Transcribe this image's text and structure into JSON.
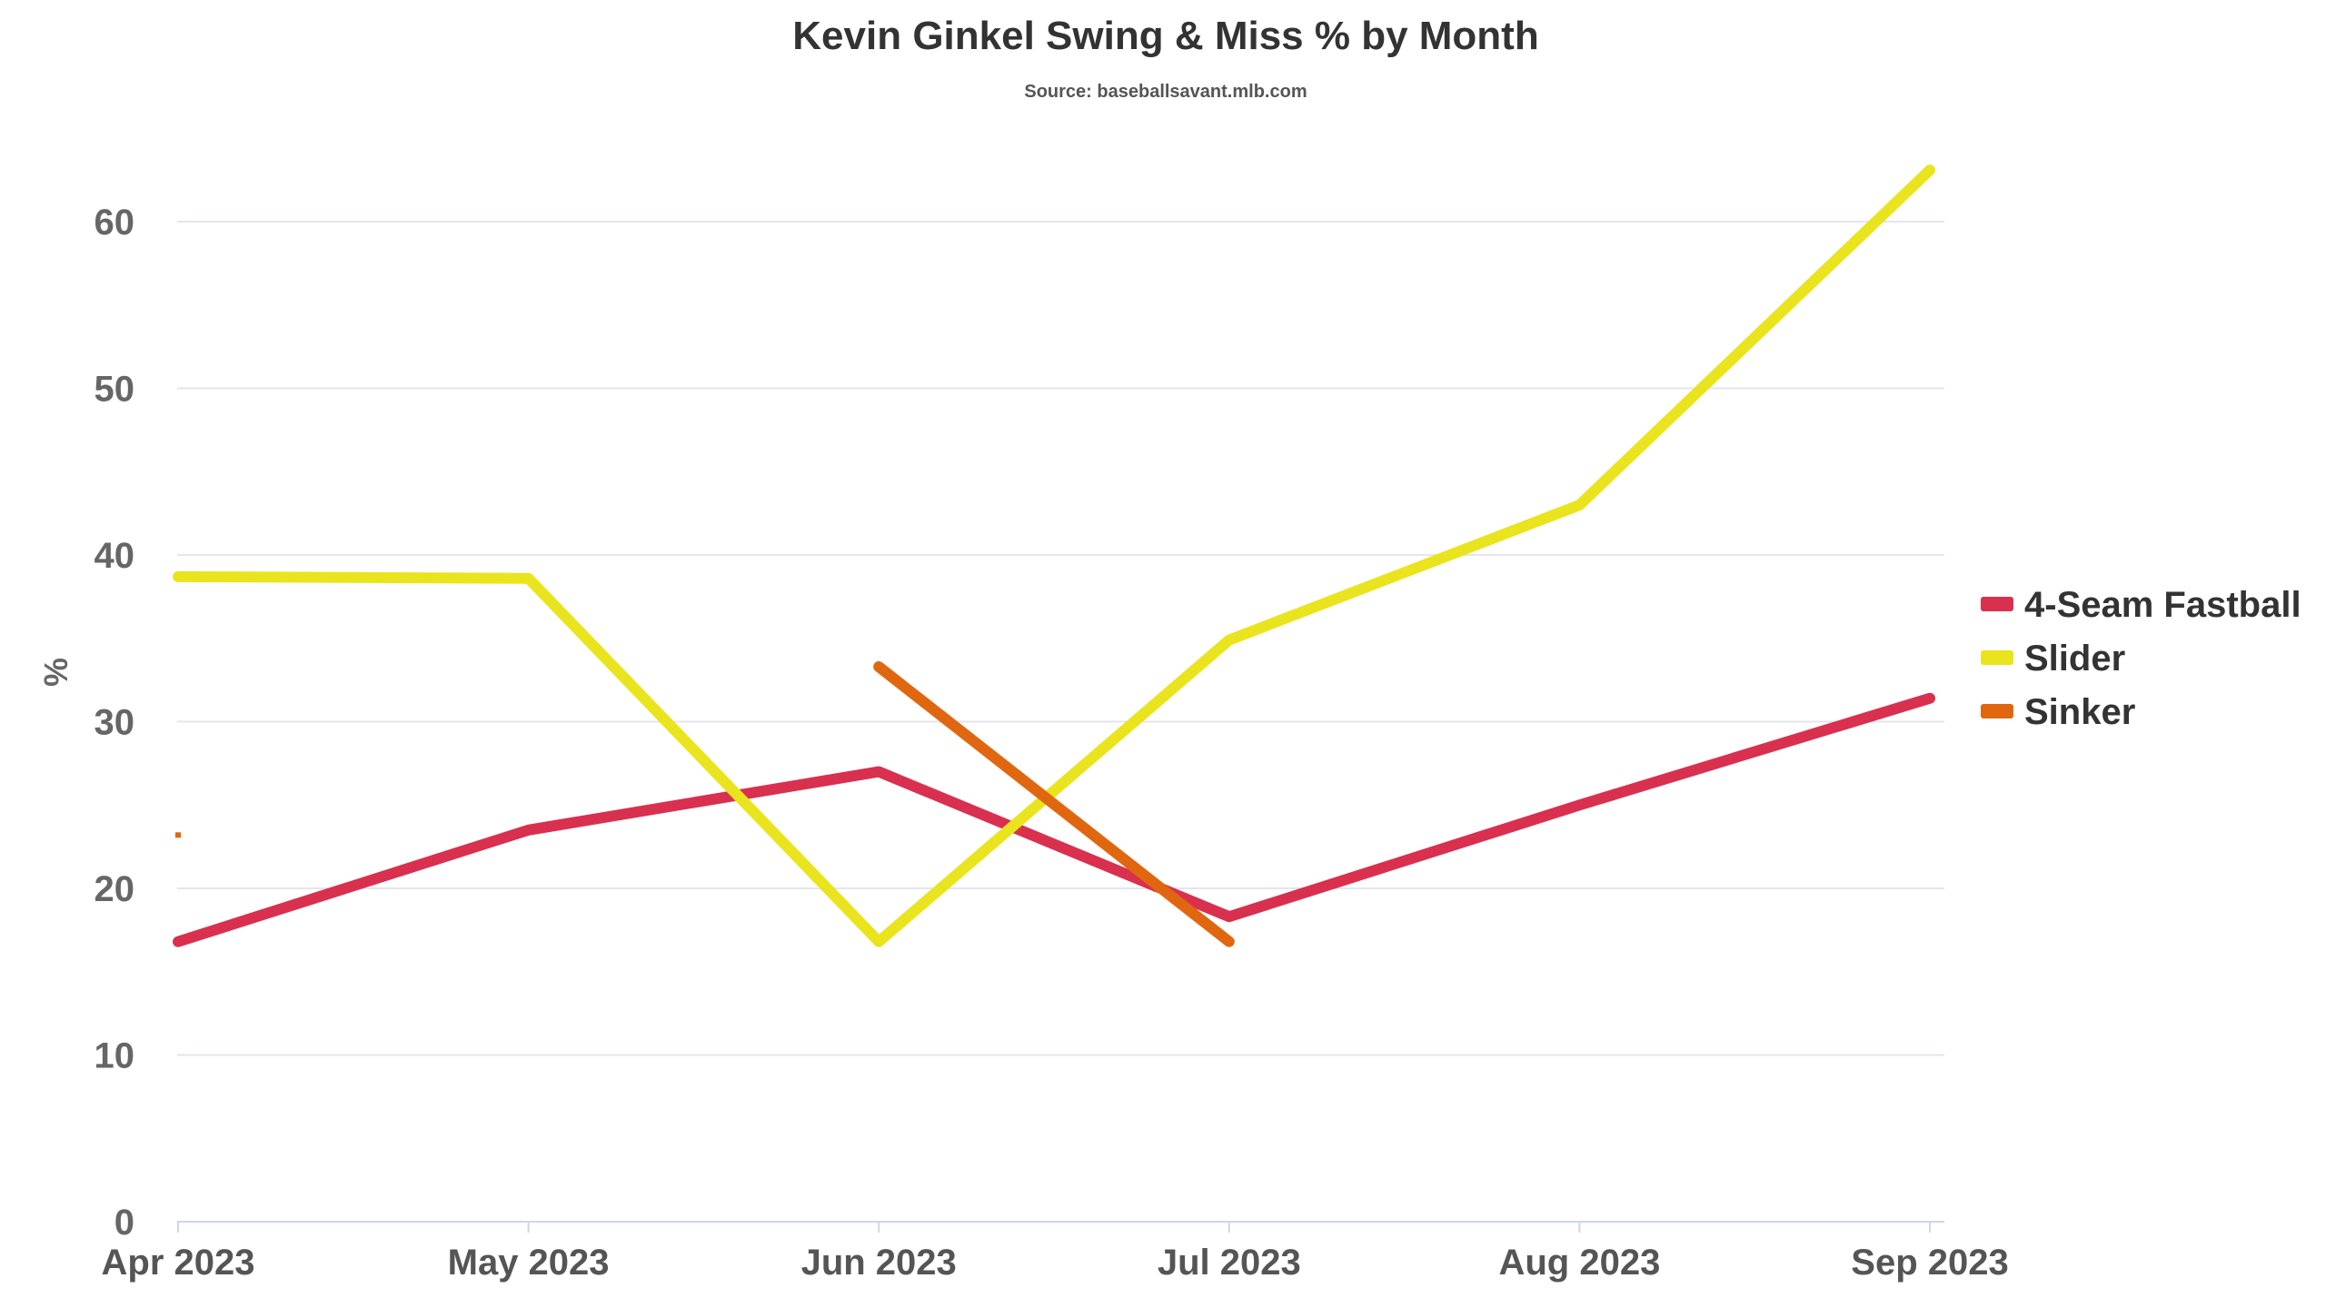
{
  "chart_data": {
    "type": "line",
    "title": "Kevin Ginkel Swing & Miss % by Month",
    "subtitle": "Source: baseballsavant.mlb.com",
    "ylabel": "%",
    "xlabel": "",
    "ylim": [
      0,
      63
    ],
    "y_ticks": [
      0,
      10,
      20,
      30,
      40,
      50,
      60
    ],
    "categories": [
      "Apr 2023",
      "May 2023",
      "Jun 2023",
      "Jul 2023",
      "Aug 2023",
      "Sep 2023"
    ],
    "grid": true,
    "legend_position": "right",
    "series": [
      {
        "name": "4-Seam Fastball",
        "color": "#d9304f",
        "values": [
          16.8,
          23.5,
          27.0,
          18.3,
          25.0,
          31.4
        ]
      },
      {
        "name": "Slider",
        "color": "#eae41e",
        "values": [
          38.7,
          38.6,
          16.8,
          34.9,
          43.0,
          63.1
        ]
      },
      {
        "name": "Sinker",
        "color": "#e0670f",
        "values": [
          23.2,
          null,
          33.3,
          16.8,
          null,
          null
        ]
      }
    ]
  }
}
